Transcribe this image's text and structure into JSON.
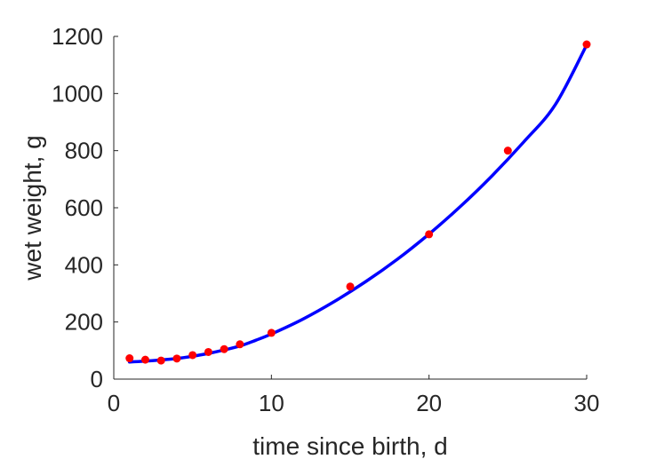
{
  "chart_data": {
    "type": "scatter",
    "title": "",
    "xlabel": "time since birth, d",
    "ylabel": "wet weight, g",
    "xlim": [
      0,
      30
    ],
    "ylim": [
      0,
      1200
    ],
    "xticks": [
      0,
      10,
      20,
      30
    ],
    "yticks": [
      0,
      200,
      400,
      600,
      800,
      1000,
      1200
    ],
    "grid": false,
    "box": false,
    "series": [
      {
        "type": "scatter",
        "color": "#ff0000",
        "x": [
          1,
          2,
          3,
          4,
          5,
          6,
          7,
          8,
          10,
          15,
          20,
          25,
          30
        ],
        "y": [
          73,
          68,
          65,
          72,
          84,
          95,
          105,
          122,
          162,
          324,
          507,
          800,
          1172
        ]
      },
      {
        "type": "line",
        "color": "#0000ff",
        "x": [
          1,
          2,
          3,
          4,
          5,
          6,
          7,
          8,
          9,
          10,
          12,
          14,
          16,
          18,
          20,
          22,
          24,
          26,
          28,
          30
        ],
        "y": [
          60,
          63,
          67,
          72,
          80,
          90,
          102,
          116,
          136,
          158,
          210,
          272,
          342,
          420,
          508,
          605,
          712,
          830,
          960,
          1170
        ]
      }
    ]
  }
}
